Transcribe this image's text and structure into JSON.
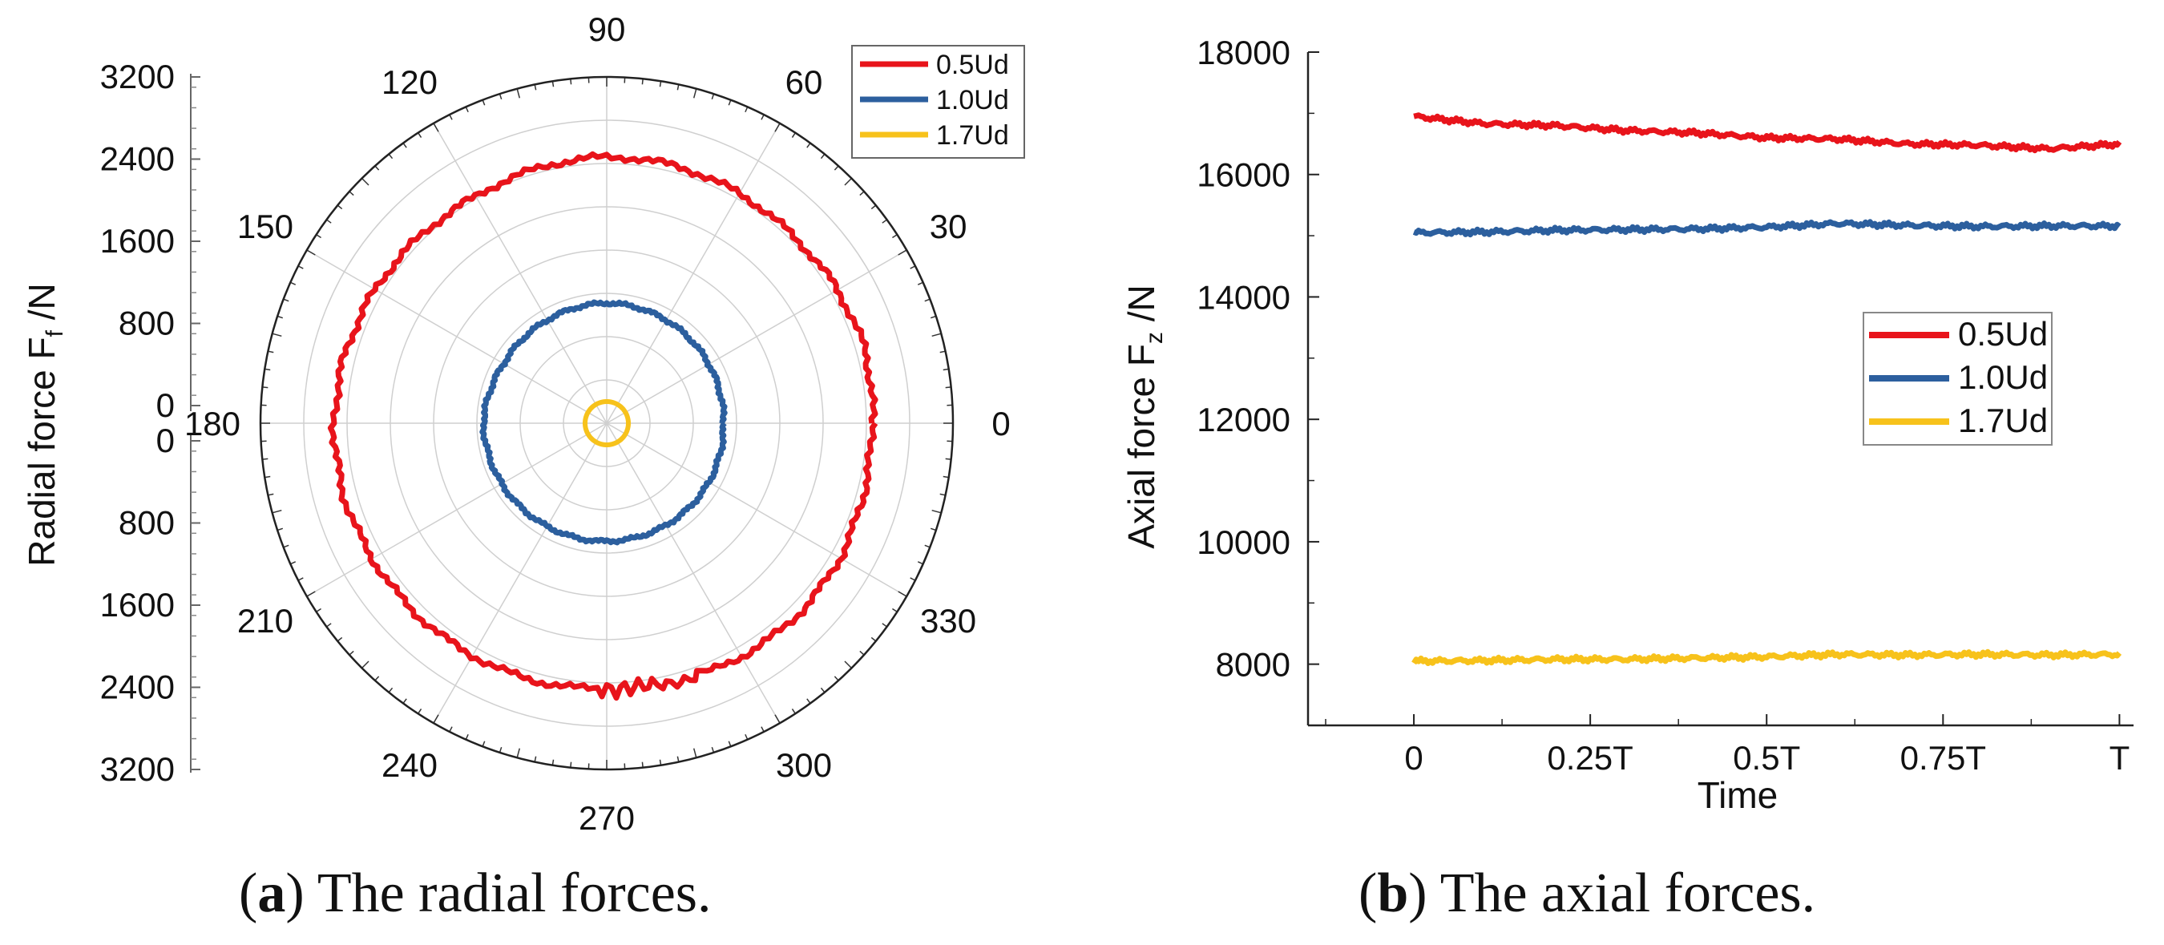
{
  "chart_data": [
    {
      "type": "polar-line",
      "ylabel": "Radial force F",
      "ylabel_sub": "f",
      "ylabel_unit": " /N",
      "radial_ticks": [
        "0",
        "800",
        "1600",
        "2400",
        "3200"
      ],
      "radial_ticks_lower": [
        "0",
        "800",
        "1600",
        "2400",
        "3200"
      ],
      "rmax": 3200,
      "angle_ticks": [
        "0",
        "30",
        "60",
        "90",
        "120",
        "150",
        "180",
        "210",
        "240",
        "270",
        "300",
        "330"
      ],
      "angles_deg": [
        0,
        30,
        60,
        90,
        120,
        150,
        180,
        210,
        240,
        270,
        300,
        330
      ],
      "legend": [
        "0.5Ud",
        "1.0Ud",
        "1.7Ud"
      ],
      "series": [
        {
          "name": "0.5Ud",
          "color": "#e8141b",
          "angles": [
            0,
            15,
            30,
            45,
            60,
            75,
            90,
            105,
            120,
            135,
            150,
            165,
            180,
            195,
            210,
            225,
            240,
            255,
            270,
            285,
            300,
            315,
            330,
            345
          ],
          "values": [
            2450,
            2480,
            2460,
            2440,
            2450,
            2460,
            2460,
            2440,
            2420,
            2440,
            2470,
            2500,
            2520,
            2520,
            2500,
            2490,
            2480,
            2470,
            2450,
            2470,
            2490,
            2500,
            2490,
            2460
          ]
        },
        {
          "name": "1.0Ud",
          "color": "#2c5f9e",
          "angles": [
            0,
            30,
            60,
            90,
            120,
            150,
            180,
            210,
            240,
            270,
            300,
            330
          ],
          "values": [
            1080,
            1090,
            1100,
            1110,
            1100,
            1100,
            1140,
            1120,
            1100,
            1090,
            1090,
            1090
          ]
        },
        {
          "name": "1.7Ud",
          "color": "#f7c21b",
          "angles": [
            0,
            90,
            180,
            270
          ],
          "values": [
            200,
            200,
            200,
            200
          ]
        }
      ],
      "caption_letter": "a",
      "caption_text": ") The radial forces."
    },
    {
      "type": "line",
      "xlabel": "Time",
      "ylabel": "Axial force F",
      "ylabel_sub": "z",
      "ylabel_unit": " /N",
      "x_ticks": [
        "0",
        "0.25T",
        "0.5T",
        "0.75T",
        "T"
      ],
      "x_tick_values": [
        0,
        0.25,
        0.5,
        0.75,
        1
      ],
      "xlim": [
        -0.15,
        1.02
      ],
      "y_ticks": [
        "8000",
        "10000",
        "12000",
        "14000",
        "16000",
        "18000"
      ],
      "y_tick_values": [
        8000,
        10000,
        12000,
        14000,
        16000,
        18000
      ],
      "ylim": [
        7000,
        18000
      ],
      "legend": [
        "0.5Ud",
        "1.0Ud",
        "1.7Ud"
      ],
      "series": [
        {
          "name": "0.5Ud",
          "color": "#e8141b",
          "x": [
            0,
            0.1,
            0.2,
            0.3,
            0.4,
            0.5,
            0.6,
            0.7,
            0.8,
            0.9,
            1.0
          ],
          "values": [
            16950,
            16830,
            16800,
            16720,
            16680,
            16600,
            16580,
            16500,
            16480,
            16420,
            16500
          ]
        },
        {
          "name": "1.0Ud",
          "color": "#2c5f9e",
          "x": [
            0,
            0.1,
            0.2,
            0.3,
            0.4,
            0.5,
            0.6,
            0.7,
            0.8,
            0.9,
            1.0
          ],
          "values": [
            15050,
            15060,
            15090,
            15100,
            15110,
            15140,
            15200,
            15170,
            15150,
            15160,
            15160
          ]
        },
        {
          "name": "1.7Ud",
          "color": "#f7c21b",
          "x": [
            0,
            0.1,
            0.2,
            0.3,
            0.4,
            0.5,
            0.6,
            0.7,
            0.8,
            0.9,
            1.0
          ],
          "values": [
            8050,
            8060,
            8080,
            8080,
            8100,
            8120,
            8160,
            8150,
            8160,
            8150,
            8160
          ]
        }
      ],
      "caption_letter": "b",
      "caption_text": ") The axial forces."
    }
  ]
}
